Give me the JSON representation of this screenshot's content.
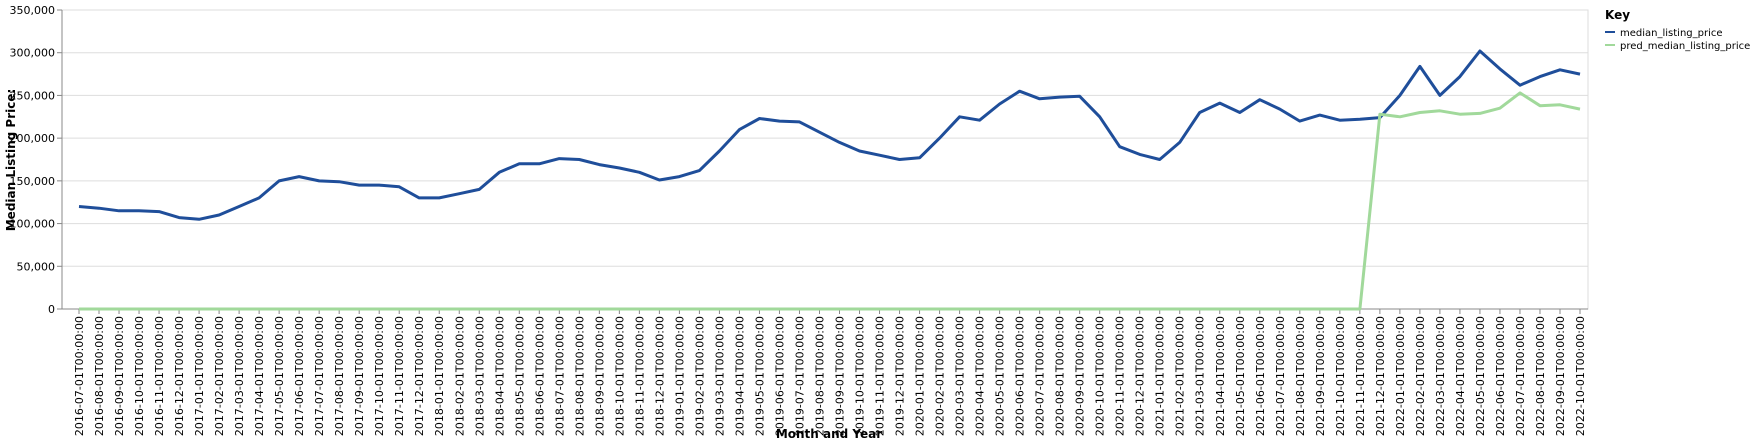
{
  "chart_data": {
    "type": "line",
    "x_label": "Month and Year",
    "y_label": "Median Listing Price:",
    "legend_title": "Key",
    "legend_position": "right",
    "grid": true,
    "categories": [
      "2016-07-01T00:00:00",
      "2016-08-01T00:00:00",
      "2016-09-01T00:00:00",
      "2016-10-01T00:00:00",
      "2016-11-01T00:00:00",
      "2016-12-01T00:00:00",
      "2017-01-01T00:00:00",
      "2017-02-01T00:00:00",
      "2017-03-01T00:00:00",
      "2017-04-01T00:00:00",
      "2017-05-01T00:00:00",
      "2017-06-01T00:00:00",
      "2017-07-01T00:00:00",
      "2017-08-01T00:00:00",
      "2017-09-01T00:00:00",
      "2017-10-01T00:00:00",
      "2017-11-01T00:00:00",
      "2017-12-01T00:00:00",
      "2018-01-01T00:00:00",
      "2018-02-01T00:00:00",
      "2018-03-01T00:00:00",
      "2018-04-01T00:00:00",
      "2018-05-01T00:00:00",
      "2018-06-01T00:00:00",
      "2018-07-01T00:00:00",
      "2018-08-01T00:00:00",
      "2018-09-01T00:00:00",
      "2018-10-01T00:00:00",
      "2018-11-01T00:00:00",
      "2018-12-01T00:00:00",
      "2019-01-01T00:00:00",
      "2019-02-01T00:00:00",
      "2019-03-01T00:00:00",
      "2019-04-01T00:00:00",
      "2019-05-01T00:00:00",
      "2019-06-01T00:00:00",
      "2019-07-01T00:00:00",
      "2019-08-01T00:00:00",
      "2019-09-01T00:00:00",
      "2019-10-01T00:00:00",
      "2019-11-01T00:00:00",
      "2019-12-01T00:00:00",
      "2020-01-01T00:00:00",
      "2020-02-01T00:00:00",
      "2020-03-01T00:00:00",
      "2020-04-01T00:00:00",
      "2020-05-01T00:00:00",
      "2020-06-01T00:00:00",
      "2020-07-01T00:00:00",
      "2020-08-01T00:00:00",
      "2020-09-01T00:00:00",
      "2020-10-01T00:00:00",
      "2020-11-01T00:00:00",
      "2020-12-01T00:00:00",
      "2021-01-01T00:00:00",
      "2021-02-01T00:00:00",
      "2021-03-01T00:00:00",
      "2021-04-01T00:00:00",
      "2021-05-01T00:00:00",
      "2021-06-01T00:00:00",
      "2021-07-01T00:00:00",
      "2021-08-01T00:00:00",
      "2021-09-01T00:00:00",
      "2021-10-01T00:00:00",
      "2021-11-01T00:00:00",
      "2021-12-01T00:00:00",
      "2022-01-01T00:00:00",
      "2022-02-01T00:00:00",
      "2022-03-01T00:00:00",
      "2022-04-01T00:00:00",
      "2022-05-01T00:00:00",
      "2022-06-01T00:00:00",
      "2022-07-01T00:00:00",
      "2022-08-01T00:00:00",
      "2022-09-01T00:00:00",
      "2022-10-01T00:00:00"
    ],
    "series": [
      {
        "name": "median_listing_price",
        "color": "#1f4e9a",
        "values": [
          120000,
          118000,
          115000,
          115000,
          114000,
          107000,
          105000,
          110000,
          120000,
          130000,
          150000,
          155000,
          150000,
          149000,
          145000,
          145000,
          143000,
          130000,
          130000,
          135000,
          140000,
          160000,
          170000,
          170000,
          176000,
          175000,
          169000,
          165000,
          160000,
          151000,
          155000,
          162000,
          185000,
          210000,
          223000,
          220000,
          219000,
          207000,
          195000,
          185000,
          180000,
          175000,
          177000,
          200000,
          225000,
          221000,
          240000,
          255000,
          246000,
          248000,
          249000,
          225000,
          190000,
          181000,
          175000,
          195000,
          230000,
          241000,
          230000,
          245000,
          234000,
          220000,
          227000,
          221000,
          222000,
          224000,
          250000,
          284000,
          250000,
          272000,
          302000,
          281000,
          262000,
          272000,
          280000,
          275000
        ]
      },
      {
        "name": "pred_median_listing_price",
        "color": "#a1d99b",
        "values": [
          0,
          0,
          0,
          0,
          0,
          0,
          0,
          0,
          0,
          0,
          0,
          0,
          0,
          0,
          0,
          0,
          0,
          0,
          0,
          0,
          0,
          0,
          0,
          0,
          0,
          0,
          0,
          0,
          0,
          0,
          0,
          0,
          0,
          0,
          0,
          0,
          0,
          0,
          0,
          0,
          0,
          0,
          0,
          0,
          0,
          0,
          0,
          0,
          0,
          0,
          0,
          0,
          0,
          0,
          0,
          0,
          0,
          0,
          0,
          0,
          0,
          0,
          0,
          0,
          0,
          228000,
          225000,
          230000,
          232000,
          228000,
          229000,
          235000,
          253000,
          238000,
          239000,
          234000
        ]
      }
    ],
    "ylim": [
      0,
      350000
    ],
    "yticks": [
      0,
      {
        "value": 50000,
        "label": "50,000"
      },
      {
        "value": 100000,
        "label": "100,000"
      },
      {
        "value": 150000,
        "label": "150,000"
      },
      {
        "value": 200000,
        "label": "200,000"
      },
      {
        "value": 250000,
        "label": "250,000"
      },
      {
        "value": 300000,
        "label": "300,000"
      },
      {
        "value": 350000,
        "label": "350,000"
      }
    ]
  }
}
